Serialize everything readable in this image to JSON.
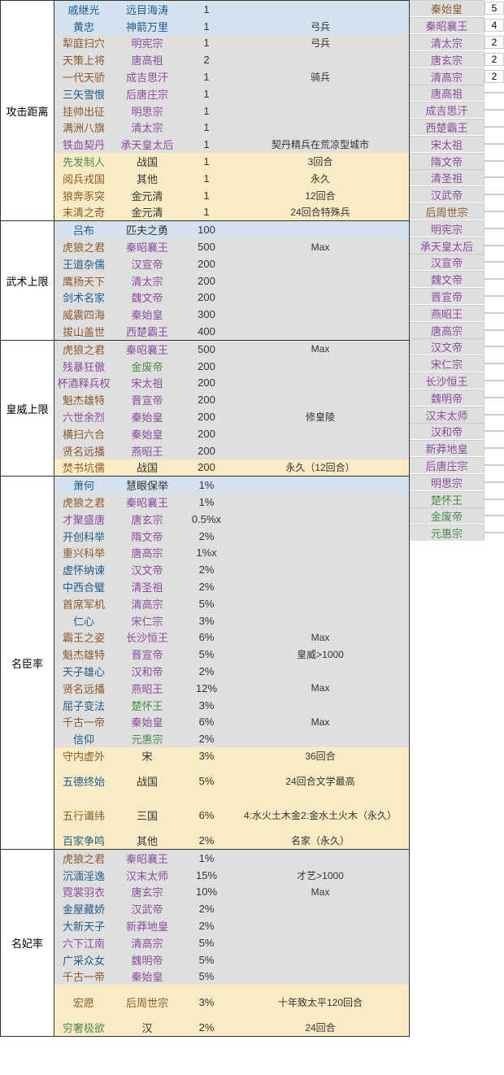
{
  "sections": [
    {
      "cat": "攻击距离",
      "rows": [
        {
          "bg": "b",
          "c1": "戚继光",
          "t1": "bl",
          "c2": "远目海涛",
          "t2": "bl",
          "c3": "1",
          "c4": ""
        },
        {
          "bg": "b",
          "c1": "黄忠",
          "t1": "bl",
          "c2": "神箭万里",
          "t2": "bl",
          "c3": "1",
          "c4": "弓兵"
        },
        {
          "bg": "g",
          "c1": "犁庭扫穴",
          "t1": "br",
          "c2": "明宪宗",
          "t2": "pu",
          "c3": "1",
          "c4": "弓兵"
        },
        {
          "bg": "g",
          "c1": "天策上将",
          "t1": "br",
          "c2": "唐高祖",
          "t2": "pu",
          "c3": "2",
          "c4": ""
        },
        {
          "bg": "g",
          "c1": "一代天骄",
          "t1": "br",
          "c2": "成吉思汗",
          "t2": "pu",
          "c3": "1",
          "c4": "骑兵"
        },
        {
          "bg": "g",
          "c1": "三矢雪恨",
          "t1": "bl",
          "c2": "后唐庄宗",
          "t2": "pu",
          "c3": "1",
          "c4": ""
        },
        {
          "bg": "g",
          "c1": "挂帅出征",
          "t1": "br",
          "c2": "明思宗",
          "t2": "pu",
          "c3": "1",
          "c4": ""
        },
        {
          "bg": "g",
          "c1": "满洲八旗",
          "t1": "br",
          "c2": "清太宗",
          "t2": "pu",
          "c3": "1",
          "c4": ""
        },
        {
          "bg": "g",
          "c1": "铁血契丹",
          "t1": "pu",
          "c2": "承天皇太后",
          "t2": "pu",
          "c3": "1",
          "c4": "契丹精兵在荒凉型城市"
        },
        {
          "bg": "y",
          "c1": "先发制人",
          "t1": "gr",
          "c2": "战国",
          "t2": "dk",
          "c3": "1",
          "c4": "3回合"
        },
        {
          "bg": "y",
          "c1": "阅兵戎国",
          "t1": "br",
          "c2": "其他",
          "t2": "dk",
          "c3": "1",
          "c4": "永久"
        },
        {
          "bg": "y",
          "c1": "狼奔豕突",
          "t1": "br",
          "c2": "金元清",
          "t2": "dk",
          "c3": "1",
          "c4": "12回合"
        },
        {
          "bg": "y",
          "c1": "末清之奇",
          "t1": "br",
          "c2": "金元清",
          "t2": "dk",
          "c3": "1",
          "c4": "24回合特殊兵"
        }
      ]
    },
    {
      "cat": "武术上限",
      "rows": [
        {
          "bg": "b",
          "c1": "吕布",
          "t1": "bl",
          "c2": "匹夫之勇",
          "t2": "dk",
          "c3": "100",
          "c4": ""
        },
        {
          "bg": "g",
          "c1": "虎狼之君",
          "t1": "br",
          "c2": "秦昭襄王",
          "t2": "pu",
          "c3": "500",
          "c4": "Max"
        },
        {
          "bg": "g",
          "c1": "王道杂儒",
          "t1": "bl",
          "c2": "汉宣帝",
          "t2": "pu",
          "c3": "200",
          "c4": ""
        },
        {
          "bg": "g",
          "c1": "鹰扬天下",
          "t1": "br",
          "c2": "清太宗",
          "t2": "pu",
          "c3": "200",
          "c4": ""
        },
        {
          "bg": "g",
          "c1": "剑术名家",
          "t1": "bl",
          "c2": "魏文帝",
          "t2": "pu",
          "c3": "200",
          "c4": ""
        },
        {
          "bg": "g",
          "c1": "威震四海",
          "t1": "br",
          "c2": "秦始皇",
          "t2": "pu",
          "c3": "300",
          "c4": ""
        },
        {
          "bg": "g",
          "c1": "拔山盖世",
          "t1": "br",
          "c2": "西楚霸王",
          "t2": "pu",
          "c3": "400",
          "c4": ""
        }
      ]
    },
    {
      "cat": "皇威上限",
      "rows": [
        {
          "bg": "g",
          "c1": "虎狼之君",
          "t1": "br",
          "c2": "秦昭襄王",
          "t2": "pu",
          "c3": "500",
          "c4": "Max"
        },
        {
          "bg": "g",
          "c1": "残暴狂傲",
          "t1": "pu",
          "c2": "金废帝",
          "t2": "gr",
          "c3": "200",
          "c4": ""
        },
        {
          "bg": "g",
          "c1": "杯酒释兵权",
          "t1": "pu",
          "c2": "宋太祖",
          "t2": "pu",
          "c3": "200",
          "c4": ""
        },
        {
          "bg": "g",
          "c1": "魁杰雄特",
          "t1": "br",
          "c2": "晋宣帝",
          "t2": "pu",
          "c3": "200",
          "c4": ""
        },
        {
          "bg": "g",
          "c1": "六世余烈",
          "t1": "pu",
          "c2": "秦始皇",
          "t2": "pu",
          "c3": "200",
          "c4": "修皇陵"
        },
        {
          "bg": "g",
          "c1": "横扫六合",
          "t1": "br",
          "c2": "秦始皇",
          "t2": "pu",
          "c3": "200",
          "c4": ""
        },
        {
          "bg": "g",
          "c1": "贤名远播",
          "t1": "br",
          "c2": "燕昭王",
          "t2": "pu",
          "c3": "200",
          "c4": ""
        },
        {
          "bg": "y",
          "c1": "焚书坑儒",
          "t1": "br",
          "c2": "战国",
          "t2": "dk",
          "c3": "200",
          "c4": "永久（12回合）"
        }
      ]
    },
    {
      "cat": "名臣率",
      "rows": [
        {
          "bg": "b",
          "c1": "萧何",
          "t1": "bl",
          "c2": "慧眼保举",
          "t2": "dk",
          "c3": "1%",
          "c4": ""
        },
        {
          "bg": "g",
          "c1": "虎狼之君",
          "t1": "br",
          "c2": "秦昭襄王",
          "t2": "pu",
          "c3": "1%",
          "c4": ""
        },
        {
          "bg": "g",
          "c1": "才聚盛唐",
          "t1": "pu",
          "c2": "唐玄宗",
          "t2": "pu",
          "c3": "0.5%x",
          "c4": ""
        },
        {
          "bg": "g",
          "c1": "开创科举",
          "t1": "bl",
          "c2": "隋文帝",
          "t2": "pu",
          "c3": "2%",
          "c4": ""
        },
        {
          "bg": "g",
          "c1": "重兴科举",
          "t1": "br",
          "c2": "唐高宗",
          "t2": "pu",
          "c3": "1%x",
          "c4": ""
        },
        {
          "bg": "g",
          "c1": "虚怀纳谏",
          "t1": "bl",
          "c2": "汉文帝",
          "t2": "pu",
          "c3": "2%",
          "c4": ""
        },
        {
          "bg": "g",
          "c1": "中西合璧",
          "t1": "bl",
          "c2": "清圣祖",
          "t2": "pu",
          "c3": "2%",
          "c4": ""
        },
        {
          "bg": "g",
          "c1": "首席军机",
          "t1": "br",
          "c2": "清高宗",
          "t2": "pu",
          "c3": "5%",
          "c4": ""
        },
        {
          "bg": "g",
          "c1": "仁心",
          "t1": "bl",
          "c2": "宋仁宗",
          "t2": "pu",
          "c3": "3%",
          "c4": ""
        },
        {
          "bg": "g",
          "c1": "霸王之姿",
          "t1": "br",
          "c2": "长沙恒王",
          "t2": "pu",
          "c3": "6%",
          "c4": "Max"
        },
        {
          "bg": "g",
          "c1": "魁杰雄特",
          "t1": "br",
          "c2": "晋宣帝",
          "t2": "pu",
          "c3": "5%",
          "c4": "皇威>1000"
        },
        {
          "bg": "g",
          "c1": "天子雄心",
          "t1": "bl",
          "c2": "汉和帝",
          "t2": "pu",
          "c3": "2%",
          "c4": ""
        },
        {
          "bg": "g",
          "c1": "贤名远播",
          "t1": "br",
          "c2": "燕昭王",
          "t2": "pu",
          "c3": "12%",
          "c4": "Max"
        },
        {
          "bg": "g",
          "c1": "屈子变法",
          "t1": "bl",
          "c2": "楚怀王",
          "t2": "gr",
          "c3": "3%",
          "c4": ""
        },
        {
          "bg": "g",
          "c1": "千古一帝",
          "t1": "br",
          "c2": "秦始皇",
          "t2": "pu",
          "c3": "6%",
          "c4": "Max"
        },
        {
          "bg": "g",
          "c1": "信仰",
          "t1": "bl",
          "c2": "元惠宗",
          "t2": "gr",
          "c3": "2%",
          "c4": ""
        },
        {
          "bg": "y",
          "c1": "守内虚外",
          "t1": "br",
          "c2": "宋",
          "t2": "dk",
          "c3": "3%",
          "c4": "36回合"
        },
        {
          "bg": "y",
          "c1": "五德终始",
          "t1": "bl",
          "c2": "战国",
          "t2": "dk",
          "c3": "5%",
          "c4": "24回合文学最高",
          "h": 2
        },
        {
          "bg": "y",
          "c1": "五行谶纬",
          "t1": "br",
          "c2": "三国",
          "t2": "dk",
          "c3": "6%",
          "c4": "4:水火土木金2:金水土火木（永久）",
          "h": 2
        },
        {
          "bg": "y",
          "c1": "百家争鸣",
          "t1": "bl",
          "c2": "其他",
          "t2": "dk",
          "c3": "2%",
          "c4": "名家（永久）"
        }
      ]
    },
    {
      "cat": "名妃率",
      "rows": [
        {
          "bg": "g",
          "c1": "虎狼之君",
          "t1": "br",
          "c2": "秦昭襄王",
          "t2": "pu",
          "c3": "1%",
          "c4": ""
        },
        {
          "bg": "g",
          "c1": "沉湎淫逸",
          "t1": "bl",
          "c2": "汉末太师",
          "t2": "pu",
          "c3": "15%",
          "c4": "才艺>1000"
        },
        {
          "bg": "g",
          "c1": "霓裳羽衣",
          "t1": "pu",
          "c2": "唐玄宗",
          "t2": "pu",
          "c3": "10%",
          "c4": "Max"
        },
        {
          "bg": "g",
          "c1": "金屋藏娇",
          "t1": "bl",
          "c2": "汉武帝",
          "t2": "pu",
          "c3": "2%",
          "c4": ""
        },
        {
          "bg": "g",
          "c1": "大新天子",
          "t1": "bl",
          "c2": "新莽地皇",
          "t2": "pu",
          "c3": "2%",
          "c4": ""
        },
        {
          "bg": "g",
          "c1": "六下江南",
          "t1": "pu",
          "c2": "清高宗",
          "t2": "pu",
          "c3": "5%",
          "c4": ""
        },
        {
          "bg": "g",
          "c1": "广采众女",
          "t1": "bl",
          "c2": "魏明帝",
          "t2": "pu",
          "c3": "5%",
          "c4": ""
        },
        {
          "bg": "g",
          "c1": "千古一帝",
          "t1": "br",
          "c2": "秦始皇",
          "t2": "pu",
          "c3": "5%",
          "c4": ""
        },
        {
          "bg": "y",
          "c1": "宏愿",
          "t1": "br",
          "c2": "后周世宗",
          "t2": "br",
          "c3": "3%",
          "c4": "十年致太平120回合",
          "h": 2
        },
        {
          "bg": "y",
          "c1": "穷奢极欲",
          "t1": "gr",
          "c2": "汉",
          "t2": "dk",
          "c3": "2%",
          "c4": "24回合"
        }
      ]
    }
  ],
  "side": [
    {
      "bg": "g",
      "n": "秦始皇",
      "t": "br",
      "v": "5"
    },
    {
      "bg": "g",
      "n": "秦昭襄王",
      "t": "pu",
      "v": "4"
    },
    {
      "bg": "g",
      "n": "清太宗",
      "t": "pu",
      "v": "2"
    },
    {
      "bg": "g",
      "n": "唐玄宗",
      "t": "pu",
      "v": "2"
    },
    {
      "bg": "g",
      "n": "清高宗",
      "t": "pu",
      "v": "2"
    },
    {
      "bg": "g",
      "n": "唐高祖",
      "t": "pu",
      "v": ""
    },
    {
      "bg": "g",
      "n": "成吉思汗",
      "t": "pu",
      "v": ""
    },
    {
      "bg": "g",
      "n": "西楚霸王",
      "t": "pu",
      "v": ""
    },
    {
      "bg": "g",
      "n": "宋太祖",
      "t": "pu",
      "v": ""
    },
    {
      "bg": "g",
      "n": "隋文帝",
      "t": "pu",
      "v": ""
    },
    {
      "bg": "g",
      "n": "清圣祖",
      "t": "pu",
      "v": ""
    },
    {
      "bg": "g",
      "n": "汉武帝",
      "t": "pu",
      "v": ""
    },
    {
      "bg": "g",
      "n": "后周世宗",
      "t": "br",
      "v": ""
    },
    {
      "bg": "g",
      "n": "明宪宗",
      "t": "pu",
      "v": ""
    },
    {
      "bg": "g",
      "n": "承天皇太后",
      "t": "pu",
      "v": ""
    },
    {
      "bg": "g",
      "n": "汉宣帝",
      "t": "pu",
      "v": ""
    },
    {
      "bg": "g",
      "n": "魏文帝",
      "t": "pu",
      "v": ""
    },
    {
      "bg": "g",
      "n": "晋宣帝",
      "t": "pu",
      "v": ""
    },
    {
      "bg": "g",
      "n": "燕昭王",
      "t": "pu",
      "v": ""
    },
    {
      "bg": "g",
      "n": "唐高宗",
      "t": "pu",
      "v": ""
    },
    {
      "bg": "g",
      "n": "汉文帝",
      "t": "pu",
      "v": ""
    },
    {
      "bg": "g",
      "n": "宋仁宗",
      "t": "pu",
      "v": ""
    },
    {
      "bg": "g",
      "n": "长沙恒王",
      "t": "pu",
      "v": ""
    },
    {
      "bg": "g",
      "n": "魏明帝",
      "t": "pu",
      "v": ""
    },
    {
      "bg": "g",
      "n": "汉末太师",
      "t": "pu",
      "v": ""
    },
    {
      "bg": "g",
      "n": "汉和帝",
      "t": "pu",
      "v": ""
    },
    {
      "bg": "g",
      "n": "新莽地皇",
      "t": "pu",
      "v": ""
    },
    {
      "bg": "g",
      "n": "后唐庄宗",
      "t": "pu",
      "v": ""
    },
    {
      "bg": "g",
      "n": "明思宗",
      "t": "pu",
      "v": ""
    },
    {
      "bg": "g",
      "n": "楚怀王",
      "t": "gr",
      "v": ""
    },
    {
      "bg": "g",
      "n": "金废帝",
      "t": "gr",
      "v": ""
    },
    {
      "bg": "g",
      "n": "元惠宗",
      "t": "gr",
      "v": ""
    }
  ]
}
